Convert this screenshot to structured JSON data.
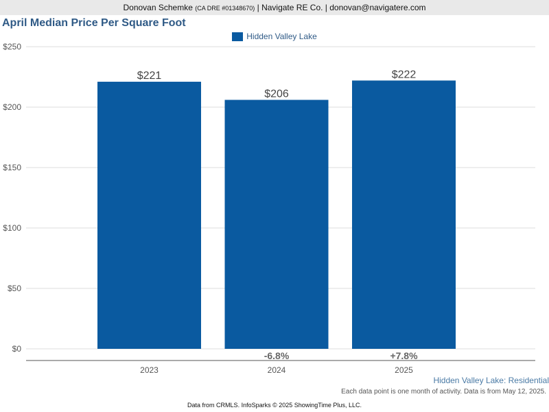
{
  "header": {
    "name": "Donovan Schemke",
    "dre": "(CA DRE #01348670)",
    "rest": "| Navigate RE Co. | donovan@navigatere.com"
  },
  "colors": {
    "bar": "#0a5aa0",
    "title": "#2f5a86",
    "header_bg": "#e9e9e9"
  },
  "chart_data": {
    "type": "bar",
    "title": "April Median Price Per Square Foot",
    "categories": [
      "2023",
      "2024",
      "2025"
    ],
    "series": [
      {
        "name": "Hidden Valley Lake",
        "values": [
          221,
          206,
          222
        ]
      }
    ],
    "value_labels": [
      "$221",
      "$206",
      "$222"
    ],
    "change_labels": [
      "",
      "-6.8%",
      "+7.8%"
    ],
    "y_ticks": [
      {
        "value": 0,
        "label": "$0"
      },
      {
        "value": 50,
        "label": "$50"
      },
      {
        "value": 100,
        "label": "$100"
      },
      {
        "value": 150,
        "label": "$150"
      },
      {
        "value": 200,
        "label": "$200"
      },
      {
        "value": 250,
        "label": "$250"
      }
    ],
    "ylim": [
      0,
      250
    ],
    "grid": true,
    "legend_position": "top-center"
  },
  "footer": {
    "subtitle": "Hidden Valley Lake: Residential",
    "note": "Each data point is one month of activity. Data is from May 12, 2025.",
    "credit": "Data from CRMLS. InfoSparks © 2025 ShowingTime Plus, LLC."
  }
}
